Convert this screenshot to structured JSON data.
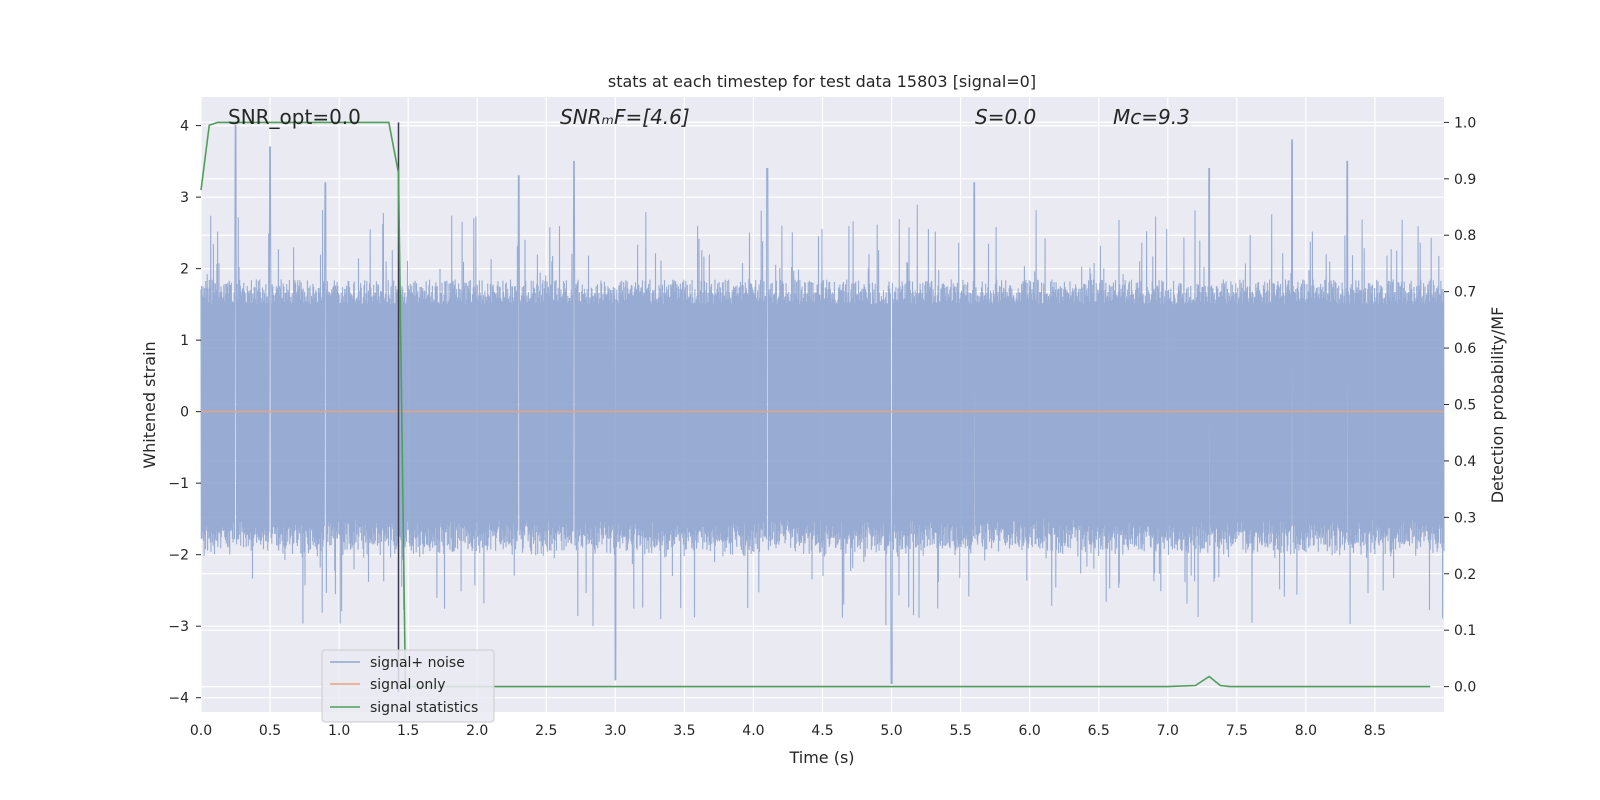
{
  "chart_data": {
    "type": "line",
    "title": "stats at each timestep for test data 15803 [signal=0]",
    "xlabel": "Time (s)",
    "ylabel": "Whitened strain",
    "y2label": "Detection probability/MF",
    "xlim": [
      0,
      9.0
    ],
    "ylim": [
      -4.2,
      4.4
    ],
    "y2lim": [
      -0.045,
      1.045
    ],
    "xticks": [
      "0.0",
      "0.5",
      "1.0",
      "1.5",
      "2.0",
      "2.5",
      "3.0",
      "3.5",
      "4.0",
      "4.5",
      "5.0",
      "5.5",
      "6.0",
      "6.5",
      "7.0",
      "7.5",
      "8.0",
      "8.5"
    ],
    "yticks": [
      "−4",
      "−3",
      "−2",
      "−1",
      "0",
      "1",
      "2",
      "3",
      "4"
    ],
    "y2ticks": [
      "0.0",
      "0.1",
      "0.2",
      "0.3",
      "0.4",
      "0.5",
      "0.6",
      "0.7",
      "0.8",
      "0.9",
      "1.0"
    ],
    "grid": true,
    "legend_position": "lower-left",
    "vline_x": 1.43,
    "annotations": [
      {
        "id": "snr-opt",
        "text": "SNR_opt=0.0"
      },
      {
        "id": "snr-mf",
        "text": "SNRₘF=[4.6]"
      },
      {
        "id": "s-stat",
        "text": "S=0.0"
      },
      {
        "id": "mc",
        "text": "Mᴄ=9.3"
      }
    ],
    "series": [
      {
        "name": "signal+ noise",
        "color": "#8fa5cf",
        "style": "dense noise, roughly within −2.5 to 2.5 with peaks near ±4",
        "envelope_y": [
          1.5,
          -1.5
        ],
        "peaks": [
          {
            "x": 0.25,
            "y": 4.0
          },
          {
            "x": 0.5,
            "y": 3.7
          },
          {
            "x": 0.9,
            "y": 3.2
          },
          {
            "x": 2.3,
            "y": 3.3
          },
          {
            "x": 2.7,
            "y": 3.5
          },
          {
            "x": 3.0,
            "y": -3.75
          },
          {
            "x": 4.1,
            "y": 3.4
          },
          {
            "x": 5.0,
            "y": -3.8
          },
          {
            "x": 5.6,
            "y": 3.2
          },
          {
            "x": 7.3,
            "y": 3.4
          },
          {
            "x": 7.9,
            "y": 3.8
          },
          {
            "x": 8.3,
            "y": 3.5
          }
        ]
      },
      {
        "name": "signal only",
        "color": "#e8a27c",
        "x": [
          0,
          9.0
        ],
        "y": [
          0,
          0
        ]
      },
      {
        "name": "signal statistics",
        "color": "#4f9f5a",
        "axis": "right",
        "x": [
          0,
          0.06,
          0.12,
          0.2,
          0.5,
          1.0,
          1.36,
          1.43,
          1.48,
          1.52,
          1.6,
          2.0,
          3.0,
          4.0,
          5.0,
          6.0,
          7.0,
          7.2,
          7.3,
          7.38,
          7.45,
          8.0,
          8.9
        ],
        "y": [
          0.88,
          0.995,
          1.0,
          1.0,
          1.0,
          1.0,
          1.0,
          0.91,
          0.0,
          0.0,
          0.0,
          0.0,
          0.0,
          0.0,
          0.0,
          0.0,
          0.0,
          0.002,
          0.018,
          0.002,
          0.0,
          0.0,
          0.0
        ]
      }
    ]
  }
}
